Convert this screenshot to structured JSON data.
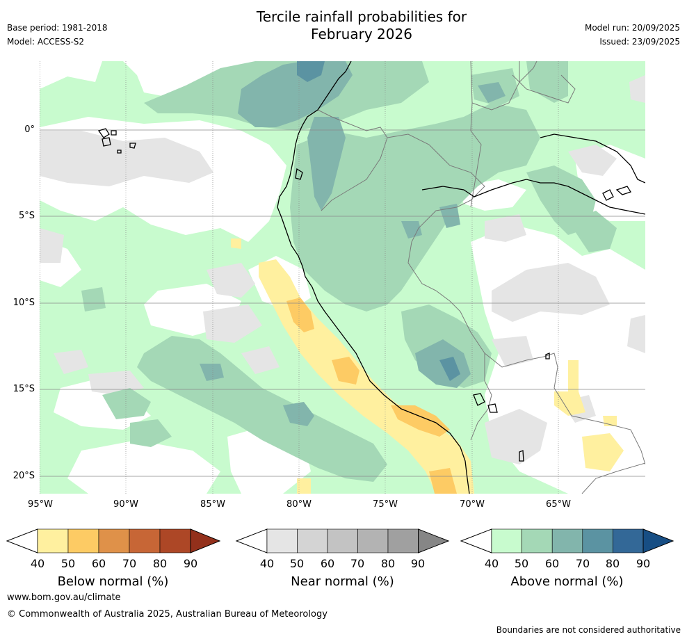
{
  "header": {
    "title_line1": "Tercile rainfall probabilities for",
    "title_line2": "February 2026",
    "base_period": "Base period: 1981-2018",
    "model": "Model: ACCESS-S2",
    "model_run": "Model run: 20/09/2025",
    "issued": "Issued: 23/09/2025"
  },
  "map": {
    "lat_labels": [
      "0°",
      "5°S",
      "10°S",
      "15°S",
      "20°S"
    ],
    "lon_labels": [
      "95°W",
      "90°W",
      "85°W",
      "80°W",
      "75°W",
      "70°W",
      "65°W"
    ],
    "lat_range": [
      -21,
      4
    ],
    "lon_range": [
      -95,
      -60
    ]
  },
  "legends": [
    {
      "title": "Below normal (%)",
      "ticks": [
        "40",
        "50",
        "60",
        "70",
        "80",
        "90"
      ],
      "colors": [
        "#fff09f",
        "#fdcb64",
        "#df9149",
        "#c76636",
        "#ad4726",
        "#93301b"
      ]
    },
    {
      "title": "Near normal (%)",
      "ticks": [
        "40",
        "50",
        "60",
        "70",
        "80",
        "90"
      ],
      "colors": [
        "#e5e5e5",
        "#d4d4d4",
        "#c3c3c3",
        "#b3b3b3",
        "#a0a0a0",
        "#868686"
      ]
    },
    {
      "title": "Above normal (%)",
      "ticks": [
        "40",
        "50",
        "60",
        "70",
        "80",
        "90"
      ],
      "colors": [
        "#c8fbce",
        "#a4d8b6",
        "#82b5ac",
        "#5b93a2",
        "#336897",
        "#174e84"
      ]
    }
  ],
  "footer": {
    "website": "www.bom.gov.au/climate",
    "copyright": "© Commonwealth of Australia 2025, Australian Bureau of Meteorology",
    "disclaimer": "Boundaries are not considered authoritative"
  }
}
